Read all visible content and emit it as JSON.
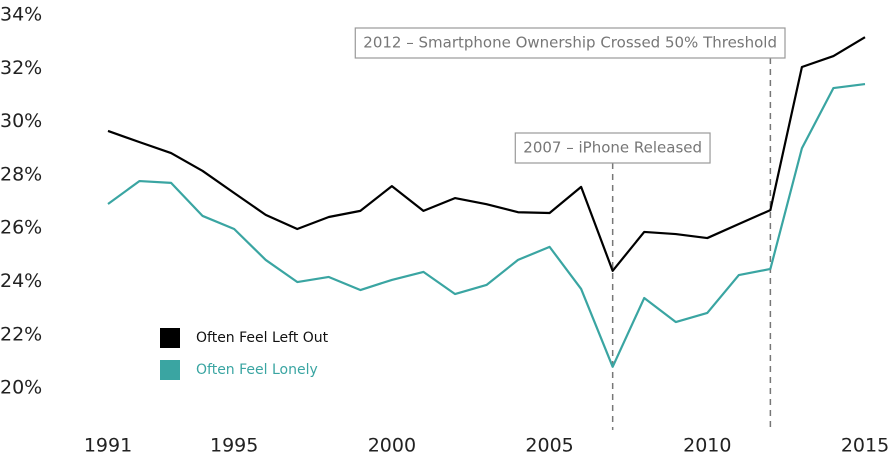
{
  "chart_data": {
    "type": "line",
    "x": [
      1991,
      1992,
      1993,
      1994,
      1995,
      1996,
      1997,
      1998,
      1999,
      2000,
      2001,
      2002,
      2003,
      2004,
      2005,
      2006,
      2007,
      2008,
      2009,
      2010,
      2011,
      2012,
      2013,
      2014,
      2015
    ],
    "series": [
      {
        "name": "Often Feel Left Out",
        "color": "#000000",
        "values": [
          29.65,
          29.23,
          28.82,
          28.15,
          27.32,
          26.5,
          25.97,
          26.42,
          26.65,
          27.58,
          26.65,
          27.13,
          26.9,
          26.6,
          26.57,
          27.55,
          24.4,
          25.86,
          25.78,
          25.63,
          26.16,
          26.68,
          32.05,
          32.46,
          33.17
        ]
      },
      {
        "name": "Often Feel Lonely",
        "color": "#3aa5a2",
        "values": [
          26.91,
          27.77,
          27.7,
          26.46,
          25.97,
          24.81,
          23.98,
          24.17,
          23.68,
          24.06,
          24.36,
          23.53,
          23.87,
          24.81,
          25.3,
          23.72,
          20.8,
          23.38,
          22.48,
          22.82,
          24.24,
          24.47,
          29.0,
          31.26,
          31.41
        ]
      }
    ],
    "xlim": [
      1991,
      2015
    ],
    "xticks": [
      1991,
      1995,
      2000,
      2005,
      2010,
      2015
    ],
    "ylim": [
      18.6,
      34.5
    ],
    "yticks": [
      {
        "value": 20,
        "label": "20%"
      },
      {
        "value": 22,
        "label": "22%"
      },
      {
        "value": 24,
        "label": "24%"
      },
      {
        "value": 26,
        "label": "26%"
      },
      {
        "value": 28,
        "label": "28%"
      },
      {
        "value": 30,
        "label": "30%"
      },
      {
        "value": 32,
        "label": "32%"
      },
      {
        "value": 34,
        "label": "34%"
      }
    ],
    "annotations": [
      {
        "x": 2007,
        "label": "2007 – iPhone Released"
      },
      {
        "x": 2012,
        "label": "2012 – Smartphone Ownership Crossed 50% Threshold"
      }
    ],
    "legend": "lower left"
  }
}
